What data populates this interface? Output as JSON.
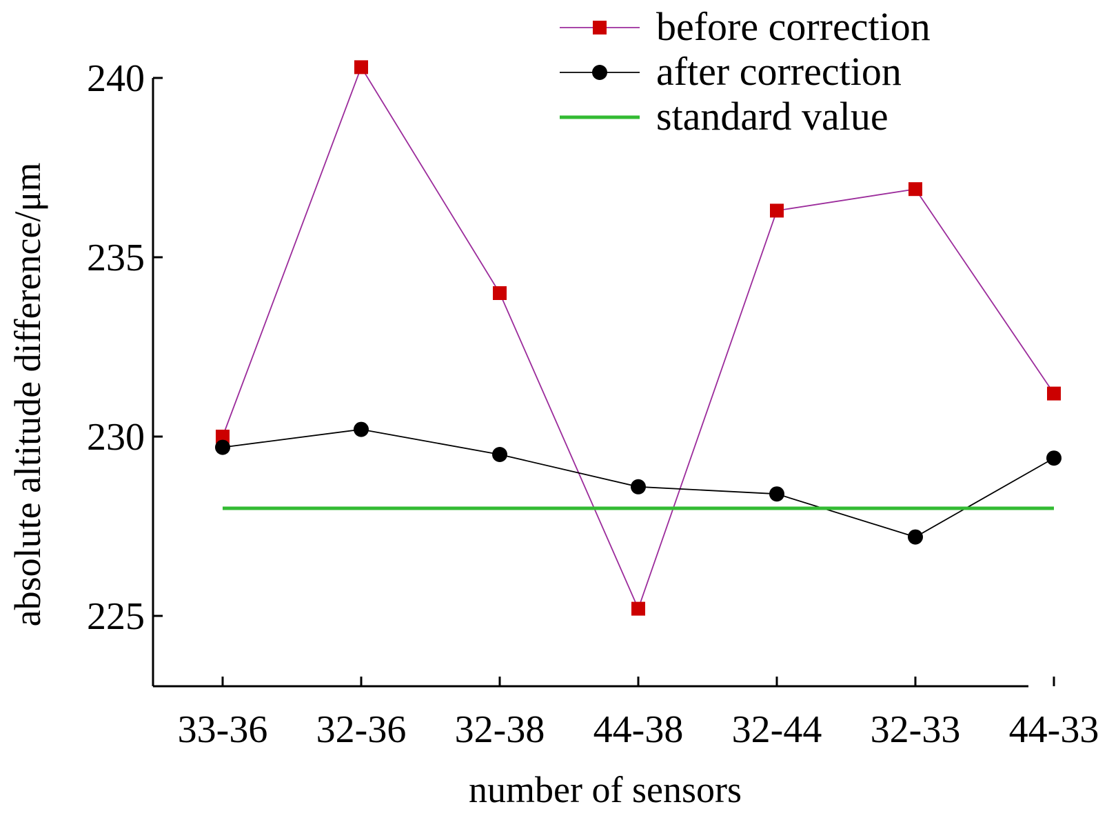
{
  "chart_data": {
    "type": "line",
    "xlabel": "number of sensors",
    "ylabel": "absolute altitude difference/μm",
    "categories": [
      "33-36",
      "32-36",
      "32-38",
      "44-38",
      "32-44",
      "32-33",
      "44-33"
    ],
    "ylim": [
      222.5,
      240
    ],
    "yticks": [
      225,
      230,
      235,
      240
    ],
    "grid": false,
    "legend_position": "top-right",
    "series": [
      {
        "name": "before correction",
        "marker": "square",
        "line_color": "#9b2b9b",
        "marker_color": "#cc0000",
        "values": [
          230.0,
          240.3,
          234.0,
          225.2,
          236.3,
          236.9,
          231.2
        ]
      },
      {
        "name": "after correction",
        "marker": "circle",
        "line_color": "#000000",
        "marker_color": "#000000",
        "values": [
          229.7,
          230.2,
          229.5,
          228.6,
          228.4,
          227.2,
          229.4
        ]
      },
      {
        "name": "standard value",
        "marker": "none",
        "line_color": "#33bb33",
        "values": [
          228.0,
          228.0,
          228.0,
          228.0,
          228.0,
          228.0,
          228.0
        ]
      }
    ]
  }
}
